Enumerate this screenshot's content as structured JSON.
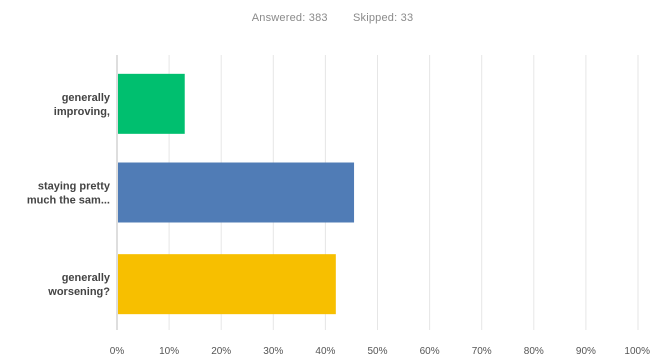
{
  "summary": {
    "answered": "Answered: 383",
    "skipped": "Skipped: 33"
  },
  "chart_data": {
    "type": "bar",
    "orientation": "horizontal",
    "categories": [
      [
        "generally",
        "improving,"
      ],
      [
        "staying pretty",
        "much the sam..."
      ],
      [
        "generally",
        "worsening?"
      ]
    ],
    "values": [
      13,
      45.5,
      42
    ],
    "colors": [
      "#00bf6f",
      "#507cb6",
      "#f7bf00"
    ],
    "xlim": [
      0,
      100
    ],
    "x_ticks": [
      "0%",
      "10%",
      "20%",
      "30%",
      "40%",
      "50%",
      "60%",
      "70%",
      "80%",
      "90%",
      "100%"
    ],
    "grid": true
  }
}
